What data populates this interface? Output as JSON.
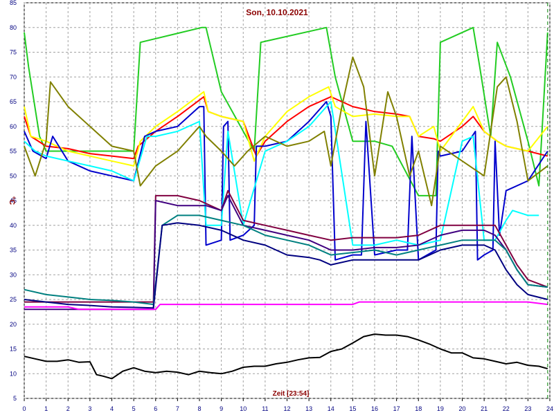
{
  "chart_data": {
    "type": "line",
    "title": "Son, 10.10.2021",
    "xlabel": "Zeit [23:54]",
    "ylabel": "°C",
    "xlim": [
      0,
      24
    ],
    "ylim": [
      5,
      85
    ],
    "x_ticks": [
      "0",
      "1",
      "2",
      "3",
      "4",
      "5",
      "6",
      "7",
      "8",
      "9",
      "10",
      "11",
      "12",
      "13",
      "14",
      "15",
      "16",
      "17",
      "18",
      "19",
      "20",
      "21",
      "22",
      "23",
      "24"
    ],
    "y_ticks": [
      "5",
      "10",
      "15",
      "20",
      "25",
      "30",
      "35",
      "40",
      "45",
      "50",
      "55",
      "60",
      "65",
      "70",
      "75",
      "80",
      "85"
    ],
    "grid": true,
    "current_time_marker": 23.9,
    "series": [
      {
        "color": "#22cc22",
        "x": [
          0,
          0.2,
          0.7,
          1.0,
          5.0,
          5.3,
          8.1,
          8.3,
          9.0,
          10.5,
          10.8,
          13.8,
          14.2,
          15.0,
          16.0,
          16.8,
          18.0,
          18.8,
          19.0,
          20.5,
          20.8,
          21.3,
          21.6,
          22.2,
          23.0,
          23.5,
          23.9
        ],
        "values": [
          79,
          72,
          58,
          55,
          55,
          77,
          80,
          80,
          67,
          55,
          77,
          80,
          70,
          57,
          57,
          56,
          46,
          46,
          77,
          80,
          72,
          58,
          77,
          70,
          57,
          48,
          79
        ]
      },
      {
        "color": "#ff0000",
        "x": [
          0,
          0.3,
          1.0,
          2.0,
          3.0,
          4.0,
          5.0,
          5.2,
          6.0,
          7.0,
          8.2,
          8.4,
          9.0,
          10.0,
          10.6,
          11.0,
          12.0,
          13.0,
          14.0,
          15.0,
          16.0,
          17.0,
          17.6,
          18.0,
          18.7,
          19.0,
          20.0,
          20.5,
          21.0,
          21.6,
          22.0,
          23.0,
          23.9
        ],
        "values": [
          62,
          58,
          56,
          55.5,
          54.5,
          54,
          53.5,
          56,
          59,
          62,
          66,
          63,
          62,
          61,
          54,
          57,
          61,
          64,
          66,
          64,
          63,
          62.5,
          62,
          58,
          57.5,
          57,
          60,
          62,
          59,
          57,
          56,
          55,
          54
        ]
      },
      {
        "color": "#ffff00",
        "x": [
          0,
          0.3,
          1.0,
          2.0,
          3.0,
          4.0,
          5.0,
          5.3,
          6.0,
          7.0,
          8.2,
          8.4,
          9.0,
          10.0,
          10.5,
          11.0,
          12.0,
          13.0,
          13.9,
          14.2,
          15.0,
          16.0,
          17.0,
          17.6,
          18.0,
          18.7,
          19.0,
          20.0,
          20.5,
          21.0,
          21.6,
          22.0,
          23.0,
          23.9
        ],
        "values": [
          64,
          58,
          57,
          55,
          54,
          53,
          52,
          57,
          60,
          63,
          67,
          63,
          62,
          61,
          53,
          58,
          63,
          66,
          68,
          64,
          62,
          62.5,
          62,
          62,
          58,
          60,
          55,
          61,
          64,
          59,
          57,
          56,
          55,
          60
        ]
      },
      {
        "color": "#0000cc",
        "x": [
          0,
          0.4,
          1.0,
          1.3,
          2.0,
          3.0,
          4.0,
          5.0,
          5.5,
          6.0,
          7.0,
          8.0,
          8.2,
          8.3,
          9.0,
          9.1,
          9.3,
          9.4,
          10.0,
          10.5,
          10.6,
          11.0,
          12.0,
          13.0,
          13.8,
          14.0,
          14.2,
          15.0,
          15.4,
          15.6,
          16.0,
          17.0,
          17.5,
          17.7,
          18.0,
          18.8,
          18.9,
          19.0,
          20.0,
          20.6,
          20.7,
          21.0,
          21.4,
          21.5,
          21.7,
          22.0,
          23.0,
          23.9
        ],
        "values": [
          59,
          55,
          53.5,
          58,
          53,
          51,
          50,
          49,
          58,
          59,
          60,
          64,
          64,
          36,
          37,
          60,
          61,
          37,
          38,
          40,
          56,
          56,
          57,
          61,
          65,
          62,
          33,
          34,
          34,
          61,
          34,
          35,
          35,
          58,
          33,
          35,
          55,
          54,
          55,
          59,
          33,
          34,
          35,
          57,
          38,
          47,
          49,
          55
        ]
      },
      {
        "color": "#00ffff",
        "x": [
          0,
          0.5,
          1.0,
          2.0,
          3.0,
          4.0,
          5.0,
          5.6,
          6.0,
          7.0,
          8.0,
          8.3,
          9.0,
          9.3,
          10.0,
          11.0,
          12.0,
          13.0,
          14.0,
          15.0,
          16.0,
          17.0,
          18.0,
          19.0,
          20.0,
          20.5,
          21.0,
          21.5,
          22.0,
          22.3,
          23.0,
          23.5
        ],
        "values": [
          57,
          55,
          54,
          53,
          52,
          51,
          49,
          58,
          58,
          59,
          61,
          40,
          40,
          59,
          40,
          55,
          57,
          60,
          65,
          36,
          36,
          37,
          36,
          37,
          57,
          58,
          37,
          37,
          41,
          43,
          42,
          42
        ]
      },
      {
        "color": "#808000",
        "x": [
          0,
          0.5,
          1.0,
          1.2,
          2.0,
          3.0,
          4.0,
          5.0,
          5.3,
          6.0,
          7.0,
          8.0,
          8.3,
          9.0,
          9.6,
          10.2,
          11.0,
          12.0,
          13.0,
          13.7,
          14.0,
          14.5,
          15.0,
          15.5,
          16.0,
          16.6,
          17.0,
          17.6,
          18.0,
          18.6,
          19.0,
          20.0,
          21.0,
          21.6,
          22.0,
          22.5,
          23.0,
          23.9
        ],
        "values": [
          56,
          50,
          57,
          69,
          64,
          60,
          56,
          55,
          48,
          52,
          55,
          60,
          58,
          55,
          52,
          55,
          58,
          56,
          57,
          59,
          52,
          64,
          74,
          68,
          50,
          67,
          62,
          50,
          55,
          44,
          56,
          53,
          50,
          68,
          70,
          61,
          49,
          52
        ]
      },
      {
        "color": "#800040",
        "x": [
          0,
          5.9,
          6.0,
          7.0,
          8.0,
          9.0,
          9.3,
          10.0,
          11.0,
          12.0,
          13.0,
          14.0,
          15.0,
          16.0,
          17.0,
          18.0,
          19.0,
          20.0,
          21.0,
          21.5,
          22.0,
          22.5,
          23.0,
          23.9
        ],
        "values": [
          24.5,
          24.5,
          46,
          46,
          45,
          43,
          47,
          41,
          40,
          39,
          38,
          37,
          37.5,
          37.5,
          37.5,
          38,
          40,
          40,
          40,
          40,
          36,
          32,
          29,
          27.5
        ]
      },
      {
        "color": "#400080",
        "x": [
          0,
          5.9,
          6.0,
          7.0,
          8.0,
          8.3,
          9.0,
          9.3,
          10.0,
          11.0,
          12.0,
          13.0,
          14.0,
          15.0,
          16.0,
          17.0,
          18.0,
          19.0,
          20.0,
          21.0,
          21.5,
          22.0,
          22.5,
          23.0,
          23.9
        ],
        "values": [
          23,
          23,
          45,
          44,
          44,
          44,
          43,
          46,
          40,
          39,
          38,
          37,
          35,
          35,
          35.5,
          35.5,
          36,
          38,
          39,
          39,
          38,
          35,
          31,
          28,
          27.5
        ]
      },
      {
        "color": "#008080",
        "x": [
          0,
          1.0,
          2.0,
          3.0,
          4.0,
          5.0,
          5.9,
          6.3,
          7.0,
          8.0,
          9.0,
          10.0,
          11.0,
          12.0,
          13.0,
          14.0,
          15.0,
          16.0,
          17.0,
          18.0,
          19.0,
          20.0,
          21.0,
          21.5,
          22.0,
          22.5,
          23.0,
          23.9
        ],
        "values": [
          27,
          26,
          25.5,
          25,
          24.8,
          24.5,
          24,
          40,
          42,
          42,
          41,
          40,
          38,
          37,
          36,
          34,
          34.5,
          35,
          34,
          35,
          36,
          37,
          37,
          37,
          35,
          31,
          28,
          27.5
        ]
      },
      {
        "color": "#000080",
        "x": [
          0,
          1.0,
          2.0,
          3.0,
          4.0,
          5.0,
          5.9,
          6.3,
          7.0,
          8.0,
          9.0,
          10.0,
          11.0,
          12.0,
          13.0,
          13.5,
          14.0,
          15.0,
          16.0,
          17.0,
          18.0,
          19.0,
          20.0,
          21.0,
          21.5,
          22.0,
          22.5,
          23.0,
          23.9
        ],
        "values": [
          25,
          24.5,
          24,
          23.8,
          23.5,
          23.4,
          23.3,
          40,
          40.5,
          40,
          39,
          37,
          36,
          34,
          33.5,
          33,
          32,
          33,
          33,
          33,
          33,
          35,
          36,
          36,
          35,
          31,
          28,
          26,
          25
        ]
      },
      {
        "color": "#ff00ff",
        "x": [
          0,
          2.0,
          2.5,
          5.0,
          6.0,
          6.2,
          10.0,
          12.0,
          15.0,
          15.3,
          18.0,
          19.0,
          20.0,
          20.5,
          22.0,
          23.0,
          23.9
        ],
        "values": [
          23.5,
          23.5,
          23,
          23,
          23,
          24,
          24,
          24,
          24,
          24.5,
          24.5,
          24.5,
          24.5,
          24.5,
          24.5,
          24.5,
          24
        ]
      },
      {
        "color": "#000000",
        "x": [
          0,
          0.5,
          1.0,
          1.5,
          2.0,
          2.5,
          3.0,
          3.3,
          3.6,
          4.0,
          4.5,
          5.0,
          5.5,
          6.0,
          6.5,
          7.0,
          7.5,
          8.0,
          8.5,
          9.0,
          9.5,
          10.0,
          10.5,
          11.0,
          11.5,
          12.0,
          12.5,
          13.0,
          13.5,
          14.0,
          14.5,
          15.0,
          15.5,
          16.0,
          16.5,
          17.0,
          17.5,
          18.0,
          18.5,
          19.0,
          19.5,
          20.0,
          20.5,
          21.0,
          21.5,
          22.0,
          22.5,
          23.0,
          23.5,
          23.9
        ],
        "values": [
          13.5,
          13,
          12.5,
          12.5,
          12.8,
          12.3,
          12.4,
          9.8,
          9.5,
          9,
          10.5,
          11.2,
          10.5,
          10.2,
          10.5,
          10.3,
          9.8,
          10.5,
          10.2,
          10,
          10.5,
          11.3,
          11.5,
          11.5,
          12,
          12.3,
          12.8,
          13.2,
          13.3,
          14.5,
          15,
          16.2,
          17.5,
          18,
          17.8,
          17.8,
          17.5,
          16.8,
          16,
          15,
          14.2,
          14.2,
          13.2,
          13,
          12.5,
          12,
          12.3,
          11.7,
          11.5,
          11
        ]
      }
    ]
  }
}
